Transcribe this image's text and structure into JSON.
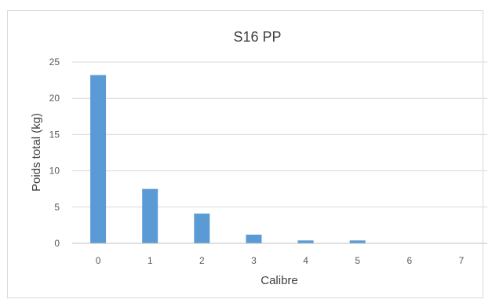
{
  "chart_data": {
    "type": "bar",
    "title": "S16 PP",
    "xlabel": "Calibre",
    "ylabel": "Poids total (kg)",
    "categories": [
      "0",
      "1",
      "2",
      "3",
      "4",
      "5",
      "6",
      "7"
    ],
    "values": [
      23.2,
      7.5,
      4.1,
      1.2,
      0.4,
      0.4,
      0,
      0
    ],
    "ylim": [
      0,
      25
    ],
    "yticks": [
      "0",
      "5",
      "10",
      "15",
      "20",
      "25"
    ],
    "grid": true,
    "legend": "none",
    "colors": {
      "bar": "#5b9bd5",
      "grid": "#d9d9d9",
      "axis": "#bfbfbf"
    }
  }
}
